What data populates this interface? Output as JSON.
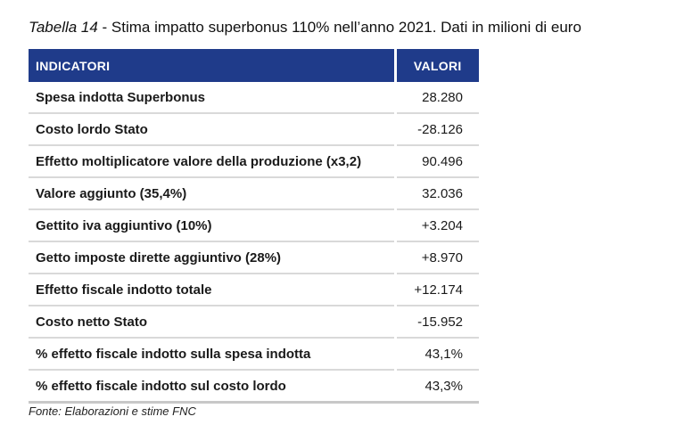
{
  "caption": {
    "label": "Tabella 14",
    "text": " - Stima impatto superbonus 110% nell’anno 2021. Dati in milioni di euro"
  },
  "table": {
    "headers": [
      "Indicatori",
      "Valori"
    ],
    "rows": [
      {
        "label": "Spesa indotta Superbonus",
        "value": "28.280"
      },
      {
        "label": "Costo lordo Stato",
        "value": "-28.126"
      },
      {
        "label": "Effetto moltiplicatore valore della produzione (x3,2)",
        "value": "90.496"
      },
      {
        "label": "Valore aggiunto (35,4%)",
        "value": "32.036"
      },
      {
        "label": "Gettito iva aggiuntivo (10%)",
        "value": "+3.204"
      },
      {
        "label": "Getto imposte dirette aggiuntivo (28%)",
        "value": "+8.970"
      },
      {
        "label": "Effetto fiscale indotto totale",
        "value": "+12.174"
      },
      {
        "label": "Costo netto Stato",
        "value": "-15.952"
      },
      {
        "label": "% effetto fiscale indotto sulla spesa indotta",
        "value": "43,1%"
      },
      {
        "label": "% effetto fiscale indotto sul costo lordo",
        "value": "43,3%"
      }
    ]
  },
  "source": "Fonte: Elaborazioni e stime FNC",
  "colors": {
    "header_bg": "#1f3b8a",
    "header_text": "#ffffff",
    "row_divider": "#d9d9d9"
  }
}
